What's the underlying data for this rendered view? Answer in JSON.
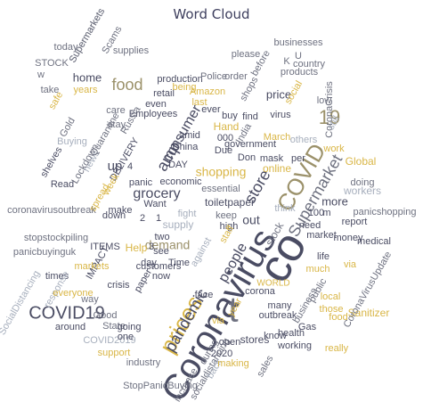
{
  "chart_data": {
    "type": "word_cloud",
    "title": "Word Cloud",
    "colors": {
      "dark": "#4a4c63",
      "mid": "#6e7180",
      "light": "#a7afbd",
      "gold": "#d9b646",
      "khaki": "#9b916a"
    },
    "words": [
      {
        "text": "Coronavirus",
        "color": "dark"
      },
      {
        "text": "co",
        "color": "dark"
      },
      {
        "text": "t",
        "color": "mid"
      },
      {
        "text": "COVID",
        "color": "khaki"
      },
      {
        "text": "prices",
        "color": "gold"
      },
      {
        "text": "Supermarket",
        "color": "mid"
      },
      {
        "text": "COVID19",
        "color": "dark"
      },
      {
        "text": "19",
        "color": "khaki"
      },
      {
        "text": "food",
        "color": "khaki"
      },
      {
        "text": "grocery",
        "color": "dark"
      },
      {
        "text": "store",
        "color": "dark"
      },
      {
        "text": "consumer",
        "color": "dark"
      },
      {
        "text": "pandemic",
        "color": "dark"
      },
      {
        "text": "shopping",
        "color": "gold"
      },
      {
        "text": "people",
        "color": "dark"
      },
      {
        "text": "demand",
        "color": "khaki"
      },
      {
        "text": "stores",
        "color": "dark"
      },
      {
        "text": "Global",
        "color": "gold"
      },
      {
        "text": "price",
        "color": "dark"
      },
      {
        "text": "online",
        "color": "gold"
      },
      {
        "text": "out",
        "color": "dark"
      },
      {
        "text": "up",
        "color": "dark"
      },
      {
        "text": "amp",
        "color": "dark"
      },
      {
        "text": "more",
        "color": "dark"
      },
      {
        "text": "Sanitizer",
        "color": "gold"
      },
      {
        "text": "via",
        "color": "gold"
      },
      {
        "text": "stock",
        "color": "mid"
      },
      {
        "text": "WORLD",
        "color": "gold"
      },
      {
        "text": "workers",
        "color": "light"
      },
      {
        "text": "toiletpaper",
        "color": "dark"
      },
      {
        "text": "supply",
        "color": "light"
      },
      {
        "text": "Help",
        "color": "gold"
      },
      {
        "text": "CoronaCrisis",
        "color": "mid"
      },
      {
        "text": "SocialDistancing",
        "color": "light"
      },
      {
        "text": "StopPanicBuying",
        "color": "mid"
      },
      {
        "text": "COVID2019",
        "color": "light"
      },
      {
        "text": "CoronaVirusUpdate",
        "color": "mid"
      },
      {
        "text": "coronavirusoutbreak",
        "color": "mid"
      },
      {
        "text": "stopstockpiling",
        "color": "mid"
      },
      {
        "text": "panicbuyinguk",
        "color": "mid"
      },
      {
        "text": "panicshopping",
        "color": "mid"
      },
      {
        "text": "socialdistancing",
        "color": "mid"
      },
      {
        "text": "Supermarkets",
        "color": "mid"
      },
      {
        "text": "Scams",
        "color": "mid"
      },
      {
        "text": "supplies",
        "color": "mid"
      },
      {
        "text": "today",
        "color": "mid"
      },
      {
        "text": "STOCK",
        "color": "mid"
      },
      {
        "text": "home",
        "color": "dark"
      },
      {
        "text": "years",
        "color": "gold"
      },
      {
        "text": "take",
        "color": "mid"
      },
      {
        "text": "safe",
        "color": "gold"
      },
      {
        "text": "Gold",
        "color": "mid"
      },
      {
        "text": "Buying",
        "color": "light"
      },
      {
        "text": "shelves",
        "color": "dark"
      },
      {
        "text": "Read",
        "color": "dark"
      },
      {
        "text": "news",
        "color": "light"
      },
      {
        "text": "Lockdown",
        "color": "mid"
      },
      {
        "text": "Quarantine",
        "color": "mid"
      },
      {
        "text": "Employees",
        "color": "dark"
      },
      {
        "text": "retail",
        "color": "dark"
      },
      {
        "text": "production",
        "color": "dark"
      },
      {
        "text": "Police",
        "color": "mid"
      },
      {
        "text": "Amazon",
        "color": "gold"
      },
      {
        "text": "being",
        "color": "gold"
      },
      {
        "text": "even",
        "color": "dark"
      },
      {
        "text": "Russia",
        "color": "mid"
      },
      {
        "text": "stay",
        "color": "mid"
      },
      {
        "text": "care",
        "color": "mid"
      },
      {
        "text": "Hand",
        "color": "gold"
      },
      {
        "text": "last",
        "color": "gold"
      },
      {
        "text": "amid",
        "color": "dark"
      },
      {
        "text": "China",
        "color": "dark"
      },
      {
        "text": "DAY",
        "color": "dark"
      },
      {
        "text": "ever",
        "color": "dark"
      },
      {
        "text": "buy",
        "color": "dark"
      },
      {
        "text": "find",
        "color": "dark"
      },
      {
        "text": "please",
        "color": "mid"
      },
      {
        "text": "order",
        "color": "mid"
      },
      {
        "text": "before",
        "color": "mid"
      },
      {
        "text": "businesses",
        "color": "mid"
      },
      {
        "text": "products",
        "color": "mid"
      },
      {
        "text": "country",
        "color": "mid"
      },
      {
        "text": "shops",
        "color": "mid"
      },
      {
        "text": "social",
        "color": "gold"
      },
      {
        "text": "low",
        "color": "mid"
      },
      {
        "text": "still",
        "color": "light"
      },
      {
        "text": "virus",
        "color": "dark"
      },
      {
        "text": "March",
        "color": "gold"
      },
      {
        "text": "others",
        "color": "light"
      },
      {
        "text": "India",
        "color": "mid"
      },
      {
        "text": "Don",
        "color": "dark"
      },
      {
        "text": "mask",
        "color": "dark"
      },
      {
        "text": "government",
        "color": "dark"
      },
      {
        "text": "per",
        "color": "dark"
      },
      {
        "text": "essential",
        "color": "mid"
      },
      {
        "text": "doing",
        "color": "mid"
      },
      {
        "text": "think",
        "color": "light"
      },
      {
        "text": "keep",
        "color": "mid"
      },
      {
        "text": "high",
        "color": "dark"
      },
      {
        "text": "fight",
        "color": "light"
      },
      {
        "text": "Want",
        "color": "dark"
      },
      {
        "text": "economic",
        "color": "dark"
      },
      {
        "text": "panic",
        "color": "dark"
      },
      {
        "text": "DELIVERY",
        "color": "dark"
      },
      {
        "text": "make",
        "color": "dark"
      },
      {
        "text": "spread",
        "color": "gold"
      },
      {
        "text": "week",
        "color": "gold"
      },
      {
        "text": "down",
        "color": "dark"
      },
      {
        "text": "ITEMS",
        "color": "dark"
      },
      {
        "text": "IMPACT",
        "color": "dark"
      },
      {
        "text": "markets",
        "color": "gold"
      },
      {
        "text": "times",
        "color": "dark"
      },
      {
        "text": "response",
        "color": "light"
      },
      {
        "text": "everyone",
        "color": "gold"
      },
      {
        "text": "way",
        "color": "mid"
      },
      {
        "text": "Good",
        "color": "mid"
      },
      {
        "text": "State",
        "color": "mid"
      },
      {
        "text": "around",
        "color": "dark"
      },
      {
        "text": "support",
        "color": "gold"
      },
      {
        "text": "industry",
        "color": "mid"
      },
      {
        "text": "crisis",
        "color": "dark"
      },
      {
        "text": "paper",
        "color": "dark"
      },
      {
        "text": "customers",
        "color": "dark"
      },
      {
        "text": "now",
        "color": "dark"
      },
      {
        "text": "Time",
        "color": "dark"
      },
      {
        "text": "staff",
        "color": "gold"
      },
      {
        "text": "against",
        "color": "light"
      },
      {
        "text": "face",
        "color": "dark"
      },
      {
        "text": "corona",
        "color": "dark"
      },
      {
        "text": "year",
        "color": "gold"
      },
      {
        "text": "many",
        "color": "dark"
      },
      {
        "text": "outbreak",
        "color": "dark"
      },
      {
        "text": "going",
        "color": "dark"
      },
      {
        "text": "one",
        "color": "dark"
      },
      {
        "text": "during",
        "color": "mid"
      },
      {
        "text": "open",
        "color": "dark"
      },
      {
        "text": "2020",
        "color": "dark"
      },
      {
        "text": "increase",
        "color": "mid"
      },
      {
        "text": "back",
        "color": "light"
      },
      {
        "text": "making",
        "color": "gold"
      },
      {
        "text": "sales",
        "color": "mid"
      },
      {
        "text": "know",
        "color": "dark"
      },
      {
        "text": "health",
        "color": "dark"
      },
      {
        "text": "working",
        "color": "dark"
      },
      {
        "text": "Gas",
        "color": "dark"
      },
      {
        "text": "business",
        "color": "mid"
      },
      {
        "text": "public",
        "color": "mid"
      },
      {
        "text": "local",
        "color": "gold"
      },
      {
        "text": "those",
        "color": "gold"
      },
      {
        "text": "food",
        "color": "gold"
      },
      {
        "text": "really",
        "color": "gold"
      },
      {
        "text": "much",
        "color": "gold"
      },
      {
        "text": "life",
        "color": "dark"
      },
      {
        "text": "market",
        "color": "dark"
      },
      {
        "text": "money",
        "color": "dark"
      },
      {
        "text": "report",
        "color": "dark"
      },
      {
        "text": "need",
        "color": "dark"
      },
      {
        "text": "medical",
        "color": "dark"
      },
      {
        "text": "via",
        "color": "gold"
      },
      {
        "text": "work",
        "color": "gold"
      },
      {
        "text": "U",
        "color": "mid"
      },
      {
        "text": "K",
        "color": "mid"
      },
      {
        "text": "000",
        "color": "dark"
      },
      {
        "text": "100",
        "color": "dark"
      },
      {
        "text": "m",
        "color": "dark"
      },
      {
        "text": "Due",
        "color": "dark"
      },
      {
        "text": "two",
        "color": "dark"
      },
      {
        "text": "see",
        "color": "dark"
      },
      {
        "text": "day",
        "color": "dark"
      },
      {
        "text": "4",
        "color": "dark"
      },
      {
        "text": "2",
        "color": "dark"
      },
      {
        "text": "3",
        "color": "dark"
      },
      {
        "text": "1",
        "color": "dark"
      },
      {
        "text": "w",
        "color": "mid"
      },
      {
        "text": "Supermarkets",
        "color": "mid"
      }
    ]
  }
}
